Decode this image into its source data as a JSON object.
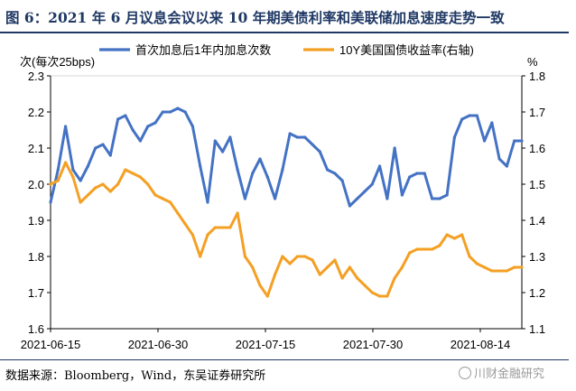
{
  "header": {
    "figure_title": "图 6：2021 年 6 月议息会议以来 10 年期美债利率和美联储加息速度走势一致"
  },
  "footer": {
    "source": "数据来源：Bloomberg，Wind，东吴证券研究所",
    "watermark": "川财金融研究"
  },
  "chart_data": {
    "type": "line",
    "title": "图 6：2021 年 6 月议息会议以来 10 年期美债利率和美联储加息速度走势一致",
    "left_axis_label": "次(每次25bps)",
    "right_axis_label": "%",
    "x_tick_labels": [
      "2021-06-15",
      "2021-06-30",
      "2021-07-15",
      "2021-07-30",
      "2021-08-14"
    ],
    "x_range": [
      0,
      63
    ],
    "y_left_range": [
      1.6,
      2.3
    ],
    "y_left_ticks": [
      "1.6",
      "1.7",
      "1.8",
      "1.9",
      "2.0",
      "2.1",
      "2.2",
      "2.3"
    ],
    "y_right_range": [
      1.1,
      1.8
    ],
    "y_right_ticks": [
      "1.1",
      "1.2",
      "1.3",
      "1.4",
      "1.5",
      "1.6",
      "1.7",
      "1.8"
    ],
    "legend": {
      "placement": "top"
    },
    "series": [
      {
        "name": "首次加息后1年内加息次数",
        "axis": "left",
        "color": "#4472c4",
        "values": [
          1.95,
          2.04,
          2.16,
          2.04,
          2.01,
          2.05,
          2.1,
          2.11,
          2.08,
          2.18,
          2.19,
          2.15,
          2.12,
          2.16,
          2.17,
          2.2,
          2.2,
          2.21,
          2.2,
          2.16,
          2.05,
          1.95,
          2.12,
          2.09,
          2.13,
          2.04,
          1.96,
          2.03,
          2.07,
          2.02,
          1.96,
          2.04,
          2.14,
          2.13,
          2.13,
          2.11,
          2.09,
          2.04,
          2.03,
          2.01,
          1.94,
          1.96,
          1.98,
          2.0,
          2.05,
          1.96,
          2.1,
          1.97,
          2.02,
          2.03,
          2.03,
          1.96,
          1.96,
          1.97,
          2.13,
          2.18,
          2.19,
          2.19,
          2.12,
          2.17,
          2.07,
          2.05,
          2.12,
          2.12
        ]
      },
      {
        "name": "10Y美国国债收益率(右轴)",
        "axis": "right",
        "color": "#f4a024",
        "values": [
          1.5,
          1.51,
          1.56,
          1.52,
          1.45,
          1.47,
          1.49,
          1.5,
          1.48,
          1.5,
          1.54,
          1.53,
          1.52,
          1.5,
          1.47,
          1.46,
          1.45,
          1.42,
          1.39,
          1.36,
          1.3,
          1.36,
          1.38,
          1.38,
          1.38,
          1.42,
          1.3,
          1.27,
          1.22,
          1.19,
          1.25,
          1.3,
          1.28,
          1.3,
          1.3,
          1.29,
          1.25,
          1.27,
          1.29,
          1.24,
          1.27,
          1.24,
          1.22,
          1.2,
          1.19,
          1.19,
          1.24,
          1.27,
          1.31,
          1.32,
          1.32,
          1.32,
          1.33,
          1.36,
          1.35,
          1.36,
          1.3,
          1.28,
          1.27,
          1.26,
          1.26,
          1.26,
          1.27,
          1.27
        ]
      }
    ]
  }
}
